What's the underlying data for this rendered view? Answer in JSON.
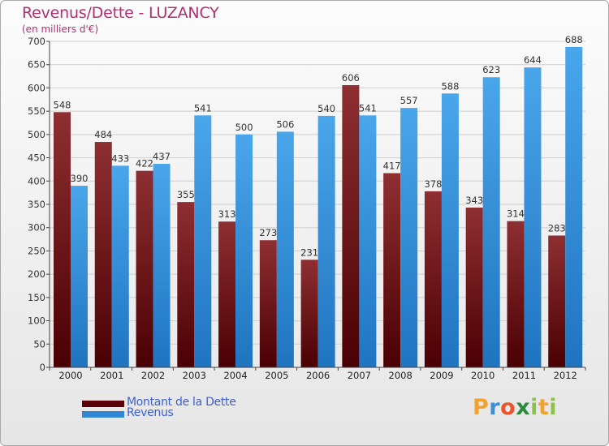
{
  "title": "Revenus/Dette - LUZANCY",
  "subtitle": "(en milliers d'€)",
  "colors": {
    "title": "#b0306f",
    "dette": "#6b0a0e",
    "revenus": "#2f86d4",
    "legend_text": "#3c5fcf"
  },
  "chart_data": {
    "type": "bar",
    "title": "Revenus/Dette - LUZANCY",
    "subtitle": "(en milliers d'€)",
    "categories": [
      "2000",
      "2001",
      "2002",
      "2003",
      "2004",
      "2005",
      "2006",
      "2007",
      "2008",
      "2009",
      "2010",
      "2011",
      "2012"
    ],
    "series": [
      {
        "name": "Montant de la Dette",
        "color": "#6b0a0e",
        "values": [
          548,
          484,
          422,
          355,
          313,
          273,
          231,
          606,
          417,
          378,
          343,
          314,
          283
        ]
      },
      {
        "name": "Revenus",
        "color": "#2f86d4",
        "values": [
          390,
          433,
          437,
          541,
          500,
          506,
          540,
          541,
          557,
          588,
          623,
          644,
          688
        ]
      }
    ],
    "ylim": [
      0,
      700
    ],
    "yticks": [
      0,
      50,
      100,
      150,
      200,
      250,
      300,
      350,
      400,
      450,
      500,
      550,
      600,
      650,
      700
    ],
    "grid": true,
    "legend": "bottom-left"
  },
  "legend": [
    {
      "label": "Montant de la Dette",
      "color": "#6b0a0e"
    },
    {
      "label": "Revenus",
      "color": "#2f86d4"
    }
  ],
  "logo": {
    "letters": [
      "P",
      "r",
      "o",
      "x",
      "i",
      "t",
      "i"
    ],
    "colors": [
      "#f2a22c",
      "#3b8fd6",
      "#e8552b",
      "#2b8a3e",
      "#8bc34a",
      "#f2a22c",
      "#8bc34a"
    ]
  }
}
